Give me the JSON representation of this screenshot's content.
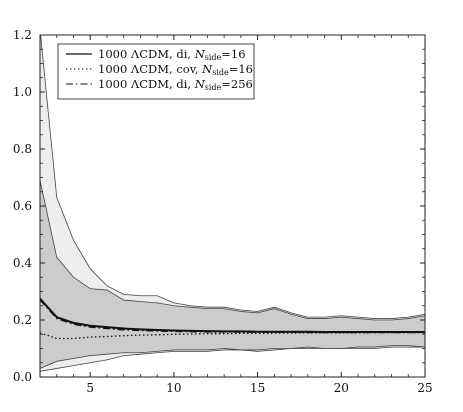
{
  "chart_data": {
    "type": "line",
    "xlim": [
      2,
      25
    ],
    "ylim": [
      0.0,
      1.2
    ],
    "x_ticks": [
      5,
      10,
      15,
      20,
      25
    ],
    "y_ticks": [
      0.0,
      0.2,
      0.4,
      0.6,
      0.8,
      1.0,
      1.2
    ],
    "x_tick_labels": [
      "5",
      "10",
      "15",
      "20",
      "25"
    ],
    "y_tick_labels": [
      "0.0",
      "0.2",
      "0.4",
      "0.6",
      "0.8",
      "1.0",
      "1.2"
    ],
    "grid": false,
    "legend_position": "top-left",
    "legend": [
      {
        "style": "solid",
        "text_main": "1000 ΛCDM, di,",
        "text_var": "N",
        "text_sub": "side",
        "text_tail": "=16"
      },
      {
        "style": "dotted",
        "text_main": "1000 ΛCDM, cov,",
        "text_var": "N",
        "text_sub": "side",
        "text_tail": "=16"
      },
      {
        "style": "dashdot",
        "text_main": "1000 ΛCDM, di,",
        "text_var": "N",
        "text_sub": "side",
        "text_tail": "=256"
      }
    ],
    "bands": [
      {
        "name": "",
        "color": "#eeeeee",
        "x": [
          2,
          3,
          4,
          5,
          6,
          7,
          8,
          9,
          10,
          11,
          12,
          13,
          14,
          15,
          16,
          17,
          18,
          19,
          20,
          21,
          22,
          23,
          24,
          25
        ],
        "upper": [
          1.22,
          0.63,
          0.48,
          0.38,
          0.32,
          0.29,
          0.285,
          0.285,
          0.26,
          0.25,
          0.245,
          0.245,
          0.235,
          0.23,
          0.245,
          0.225,
          0.21,
          0.21,
          0.215,
          0.21,
          0.205,
          0.205,
          0.21,
          0.22
        ],
        "lower": [
          0.02,
          0.03,
          0.04,
          0.05,
          0.06,
          0.075,
          0.08,
          0.085,
          0.09,
          0.09,
          0.09,
          0.095,
          0.095,
          0.09,
          0.095,
          0.1,
          0.1,
          0.1,
          0.1,
          0.1,
          0.1,
          0.105,
          0.105,
          0.105
        ]
      },
      {
        "name": "",
        "color": "#cccccc",
        "x": [
          2,
          3,
          4,
          5,
          6,
          7,
          8,
          9,
          10,
          11,
          12,
          13,
          14,
          15,
          16,
          17,
          18,
          19,
          20,
          21,
          22,
          23,
          24,
          25
        ],
        "upper": [
          0.69,
          0.42,
          0.35,
          0.31,
          0.305,
          0.27,
          0.265,
          0.26,
          0.25,
          0.245,
          0.24,
          0.24,
          0.23,
          0.225,
          0.24,
          0.22,
          0.205,
          0.205,
          0.21,
          0.205,
          0.2,
          0.2,
          0.205,
          0.215
        ],
        "lower": [
          0.03,
          0.055,
          0.065,
          0.075,
          0.08,
          0.085,
          0.085,
          0.09,
          0.095,
          0.095,
          0.095,
          0.1,
          0.095,
          0.095,
          0.1,
          0.1,
          0.105,
          0.1,
          0.1,
          0.105,
          0.105,
          0.11,
          0.11,
          0.105
        ]
      }
    ],
    "series": [
      {
        "name": "1000 ΛCDM, di, Nside=16",
        "style": "solid",
        "x": [
          2,
          3,
          4,
          5,
          6,
          7,
          8,
          9,
          10,
          11,
          12,
          13,
          14,
          15,
          16,
          17,
          18,
          19,
          20,
          21,
          22,
          23,
          24,
          25
        ],
        "values": [
          0.275,
          0.21,
          0.19,
          0.18,
          0.175,
          0.17,
          0.167,
          0.165,
          0.163,
          0.162,
          0.161,
          0.16,
          0.16,
          0.159,
          0.159,
          0.159,
          0.159,
          0.158,
          0.158,
          0.158,
          0.158,
          0.158,
          0.158,
          0.158
        ]
      },
      {
        "name": "1000 ΛCDM, cov, Nside=16",
        "style": "dotted",
        "x": [
          2,
          3,
          4,
          5,
          6,
          7,
          8,
          9,
          10,
          11,
          12,
          13,
          14,
          15,
          16,
          17,
          18,
          19,
          20,
          21,
          22,
          23,
          24,
          25
        ],
        "values": [
          0.155,
          0.135,
          0.135,
          0.14,
          0.142,
          0.145,
          0.147,
          0.148,
          0.15,
          0.151,
          0.152,
          0.152,
          0.153,
          0.153,
          0.154,
          0.154,
          0.155,
          0.155,
          0.155,
          0.155,
          0.156,
          0.156,
          0.156,
          0.156
        ]
      },
      {
        "name": "1000 ΛCDM, di, Nside=256",
        "style": "dashdot",
        "x": [
          2,
          3,
          4,
          5,
          6,
          7,
          8,
          9,
          10,
          11,
          12,
          13,
          14,
          15,
          16,
          17,
          18,
          19,
          20,
          21,
          22,
          23,
          24,
          25
        ],
        "values": [
          0.27,
          0.205,
          0.185,
          0.175,
          0.17,
          0.165,
          0.163,
          0.161,
          0.16,
          0.159,
          0.158,
          0.158,
          0.157,
          0.157,
          0.157,
          0.157,
          0.156,
          0.156,
          0.156,
          0.156,
          0.156,
          0.156,
          0.156,
          0.156
        ]
      }
    ]
  }
}
